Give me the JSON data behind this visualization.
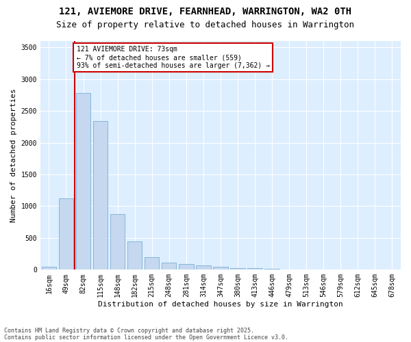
{
  "title1": "121, AVIEMORE DRIVE, FEARNHEAD, WARRINGTON, WA2 0TH",
  "title2": "Size of property relative to detached houses in Warrington",
  "xlabel": "Distribution of detached houses by size in Warrington",
  "ylabel": "Number of detached properties",
  "categories": [
    "16sqm",
    "49sqm",
    "82sqm",
    "115sqm",
    "148sqm",
    "182sqm",
    "215sqm",
    "248sqm",
    "281sqm",
    "314sqm",
    "347sqm",
    "380sqm",
    "413sqm",
    "446sqm",
    "479sqm",
    "513sqm",
    "546sqm",
    "579sqm",
    "612sqm",
    "645sqm",
    "678sqm"
  ],
  "values": [
    50,
    1120,
    2780,
    2340,
    880,
    450,
    200,
    110,
    90,
    65,
    45,
    30,
    20,
    10,
    5,
    3,
    2,
    1,
    1,
    1,
    0
  ],
  "bar_color": "#c5d8ef",
  "bar_edge_color": "#7baed4",
  "bar_width": 0.85,
  "ylim": [
    0,
    3600
  ],
  "yticks": [
    0,
    500,
    1000,
    1500,
    2000,
    2500,
    3000,
    3500
  ],
  "vline_color": "#cc0000",
  "vline_x": 1.5,
  "annotation_text": "121 AVIEMORE DRIVE: 73sqm\n← 7% of detached houses are smaller (559)\n93% of semi-detached houses are larger (7,362) →",
  "annotation_box_color": "#ffffff",
  "annotation_edge_color": "#cc0000",
  "footnote1": "Contains HM Land Registry data © Crown copyright and database right 2025.",
  "footnote2": "Contains public sector information licensed under the Open Government Licence v3.0.",
  "fig_background": "#ffffff",
  "plot_background": "#ddeeff",
  "grid_color": "#ffffff",
  "title1_fontsize": 10,
  "title2_fontsize": 9,
  "tick_fontsize": 7,
  "ylabel_fontsize": 8,
  "xlabel_fontsize": 8,
  "footnote_fontsize": 6
}
